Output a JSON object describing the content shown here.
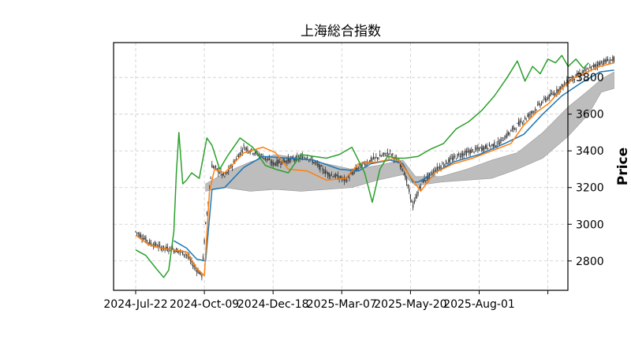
{
  "chart_data": {
    "type": "line",
    "title": "上海総合指数",
    "xlabel": "",
    "ylabel": "Price",
    "grid": true,
    "y_axis_side": "right",
    "ylim": [
      2640,
      3990
    ],
    "yticks": [
      2800,
      3000,
      3200,
      3400,
      3600,
      3800
    ],
    "xticks": [
      "2024-Jul-22",
      "2024-Oct-09",
      "2024-Dec-18",
      "2025-Mar-07",
      "2025-May-20",
      "2025-Aug-01",
      ""
    ],
    "colors": {
      "candles": "#333333",
      "series_blue": "#1f77b4",
      "series_orange": "#ff7f0e",
      "series_green": "#2ca02c",
      "cloud_fill": "#bdbdbd"
    },
    "candles": {
      "description_free": true,
      "anchors_x": [
        0,
        12,
        22,
        32,
        40,
        46,
        52,
        55,
        60,
        70,
        85,
        100,
        108,
        120,
        135,
        150,
        165,
        175,
        185,
        200,
        210,
        218,
        225,
        230,
        240,
        255,
        270,
        285,
        300,
        310,
        320,
        330,
        340,
        350,
        360,
        365,
        376
      ],
      "anchors_close": [
        2960,
        2895,
        2870,
        2860,
        2835,
        2770,
        2720,
        3000,
        3320,
        3260,
        3420,
        3370,
        3330,
        3350,
        3370,
        3280,
        3240,
        3310,
        3350,
        3390,
        3310,
        3100,
        3230,
        3260,
        3320,
        3380,
        3410,
        3440,
        3540,
        3600,
        3670,
        3720,
        3780,
        3820,
        3860,
        3880,
        3900
      ]
    },
    "series": [
      {
        "color_key": "series_blue",
        "x": [
          30,
          40,
          48,
          55,
          60,
          70,
          85,
          100,
          120,
          140,
          160,
          175,
          185,
          200,
          210,
          218,
          222,
          235,
          250,
          270,
          290,
          305,
          320,
          335,
          350,
          365,
          376
        ],
        "values": [
          2910,
          2870,
          2810,
          2800,
          3190,
          3200,
          3310,
          3370,
          3360,
          3350,
          3300,
          3290,
          3330,
          3350,
          3330,
          3230,
          3230,
          3280,
          3340,
          3380,
          3440,
          3490,
          3600,
          3700,
          3770,
          3830,
          3840
        ]
      },
      {
        "color_key": "series_orange",
        "x": [
          0,
          10,
          20,
          30,
          40,
          48,
          54,
          58,
          62,
          70,
          85,
          100,
          110,
          120,
          135,
          150,
          165,
          175,
          190,
          205,
          212,
          218,
          224,
          235,
          250,
          265,
          280,
          295,
          305,
          315,
          325,
          335,
          345,
          355,
          365,
          376
        ],
        "values": [
          2940,
          2890,
          2870,
          2860,
          2850,
          2760,
          2720,
          3180,
          3300,
          3280,
          3390,
          3420,
          3390,
          3300,
          3290,
          3240,
          3250,
          3330,
          3340,
          3360,
          3300,
          3240,
          3180,
          3280,
          3330,
          3360,
          3400,
          3440,
          3540,
          3610,
          3660,
          3740,
          3800,
          3830,
          3860,
          3880
        ]
      },
      {
        "color_key": "series_green",
        "x": [
          0,
          8,
          16,
          22,
          26,
          30,
          32,
          34,
          37,
          40,
          44,
          50,
          56,
          60,
          66,
          72,
          82,
          92,
          102,
          110,
          120,
          130,
          140,
          150,
          160,
          170,
          180,
          186,
          192,
          198,
          205,
          212,
          222,
          232,
          242,
          252,
          262,
          272,
          282,
          292,
          300,
          306,
          312,
          318,
          324,
          330,
          335,
          340,
          346,
          352,
          356
        ],
        "values": [
          2860,
          2830,
          2760,
          2710,
          2750,
          2960,
          3280,
          3500,
          3220,
          3240,
          3280,
          3250,
          3470,
          3430,
          3300,
          3370,
          3470,
          3420,
          3320,
          3300,
          3280,
          3380,
          3370,
          3360,
          3380,
          3420,
          3280,
          3120,
          3300,
          3370,
          3360,
          3360,
          3370,
          3410,
          3440,
          3520,
          3560,
          3620,
          3700,
          3800,
          3890,
          3780,
          3860,
          3820,
          3900,
          3880,
          3920,
          3860,
          3900,
          3850,
          3880
        ]
      }
    ],
    "cloud": {
      "x": [
        55,
        70,
        90,
        110,
        130,
        150,
        170,
        190,
        210,
        220,
        240,
        260,
        280,
        300,
        320,
        340,
        356,
        366,
        376
      ],
      "upper": [
        3220,
        3280,
        3340,
        3380,
        3360,
        3330,
        3300,
        3320,
        3350,
        3260,
        3260,
        3300,
        3350,
        3390,
        3500,
        3640,
        3730,
        3790,
        3830
      ],
      "lower": [
        3180,
        3200,
        3180,
        3190,
        3180,
        3190,
        3200,
        3240,
        3270,
        3210,
        3230,
        3240,
        3250,
        3300,
        3360,
        3480,
        3600,
        3720,
        3740
      ]
    }
  }
}
